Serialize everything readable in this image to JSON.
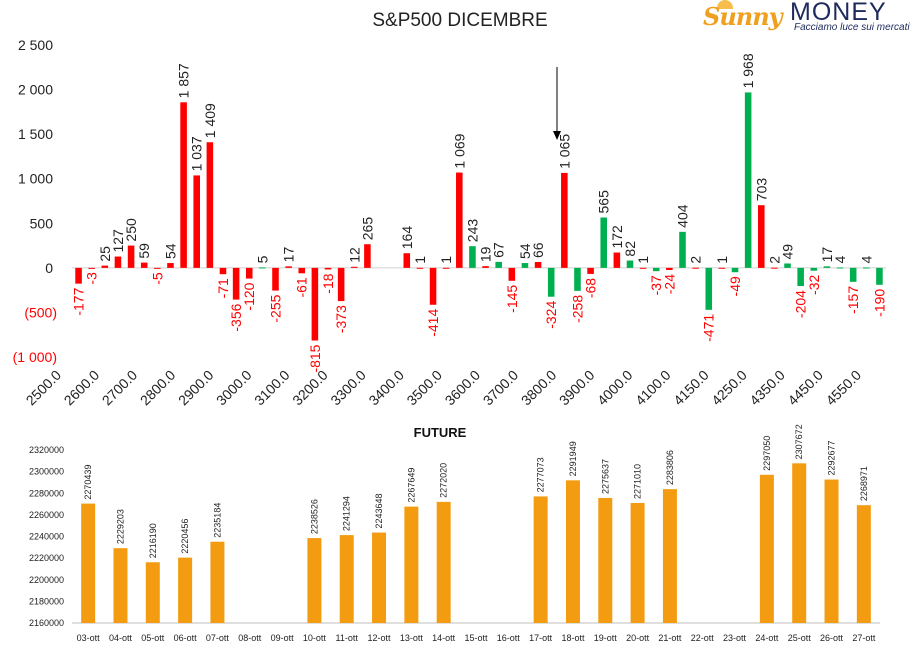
{
  "brand": {
    "name_part1": "Sunny",
    "name_part2": "MONEY",
    "tagline": "Facciamo luce sui mercati"
  },
  "colors": {
    "positive": "#00b050",
    "negative": "#ff0000",
    "bar2": "#f39c12",
    "text": "#222222"
  },
  "chart_data": [
    {
      "type": "bar",
      "title": "S&P500 DICEMBRE",
      "ylim": [
        -1000,
        2500
      ],
      "yticks": [
        2500,
        2000,
        1500,
        1000,
        500,
        0,
        -500,
        -1000
      ],
      "ytick_labels": [
        "2 500",
        "2 000",
        "1 500",
        "1 000",
        "500",
        "0",
        "(500)",
        "(1 000)"
      ],
      "x_tick_labels": [
        "2500.0",
        "2600.0",
        "2700.0",
        "2800.0",
        "2900.0",
        "3000.0",
        "3100.0",
        "3200.0",
        "3300.0",
        "3400.0",
        "3500.0",
        "3600.0",
        "3700.0",
        "3800.0",
        "3900.0",
        "4000.0",
        "4100.0",
        "4150.0",
        "4250.0",
        "4350.0",
        "4450.0",
        "4550.0"
      ],
      "bars": [
        {
          "v": -177,
          "label": "-177",
          "c": "red"
        },
        {
          "v": -3,
          "label": "-3",
          "c": "red"
        },
        {
          "v": 25,
          "label": "25",
          "c": "red"
        },
        {
          "v": 127,
          "label": "127",
          "c": "red"
        },
        {
          "v": 250,
          "label": "250",
          "c": "red"
        },
        {
          "v": 59,
          "label": "59",
          "c": "red"
        },
        {
          "v": -5,
          "label": "-5",
          "c": "red"
        },
        {
          "v": 54,
          "label": "54",
          "c": "red"
        },
        {
          "v": 1857,
          "label": "1 857",
          "c": "red"
        },
        {
          "v": 1037,
          "label": "1 037",
          "c": "red"
        },
        {
          "v": 1409,
          "label": "1 409",
          "c": "red"
        },
        {
          "v": -71,
          "label": "-71",
          "c": "red"
        },
        {
          "v": -356,
          "label": "-356",
          "c": "red"
        },
        {
          "v": -120,
          "label": "-120",
          "c": "red"
        },
        {
          "v": 5,
          "label": "5",
          "c": "green"
        },
        {
          "v": -255,
          "label": "-255",
          "c": "red"
        },
        {
          "v": 17,
          "label": "17",
          "c": "red"
        },
        {
          "v": -61,
          "label": "-61",
          "c": "red"
        },
        {
          "v": -815,
          "label": "-815",
          "c": "red"
        },
        {
          "v": -18,
          "label": "-18",
          "c": "red"
        },
        {
          "v": -373,
          "label": "-373",
          "c": "red"
        },
        {
          "v": 12,
          "label": "12",
          "c": "red"
        },
        {
          "v": 265,
          "label": "265",
          "c": "red"
        },
        {
          "v": null,
          "label": "",
          "c": "red"
        },
        {
          "v": null,
          "label": "",
          "c": "red"
        },
        {
          "v": 164,
          "label": "164",
          "c": "red"
        },
        {
          "v": 1,
          "label": "1",
          "c": "red"
        },
        {
          "v": -414,
          "label": "-414",
          "c": "red"
        },
        {
          "v": 1,
          "label": "1",
          "c": "red"
        },
        {
          "v": 1069,
          "label": "1 069",
          "c": "red"
        },
        {
          "v": 243,
          "label": "243",
          "c": "green"
        },
        {
          "v": 19,
          "label": "19",
          "c": "red"
        },
        {
          "v": 67,
          "label": "67",
          "c": "green"
        },
        {
          "v": -145,
          "label": "-145",
          "c": "red"
        },
        {
          "v": 54,
          "label": "54",
          "c": "green"
        },
        {
          "v": 66,
          "label": "66",
          "c": "red"
        },
        {
          "v": -324,
          "label": "-324",
          "c": "green"
        },
        {
          "v": 1065,
          "label": "1 065",
          "c": "red"
        },
        {
          "v": -258,
          "label": "-258",
          "c": "green"
        },
        {
          "v": -68,
          "label": "-68",
          "c": "red"
        },
        {
          "v": 565,
          "label": "565",
          "c": "green"
        },
        {
          "v": 172,
          "label": "172",
          "c": "red"
        },
        {
          "v": 82,
          "label": "82",
          "c": "green"
        },
        {
          "v": 1,
          "label": "1",
          "c": "red"
        },
        {
          "v": -37,
          "label": "-37",
          "c": "green"
        },
        {
          "v": -24,
          "label": "-24",
          "c": "red"
        },
        {
          "v": 404,
          "label": "404",
          "c": "green"
        },
        {
          "v": 2,
          "label": "2",
          "c": "red"
        },
        {
          "v": -471,
          "label": "-471",
          "c": "green"
        },
        {
          "v": 1,
          "label": "1",
          "c": "red"
        },
        {
          "v": -49,
          "label": "-49",
          "c": "green"
        },
        {
          "v": 1968,
          "label": "1 968",
          "c": "green"
        },
        {
          "v": 703,
          "label": "703",
          "c": "red"
        },
        {
          "v": 2,
          "label": "2",
          "c": "red"
        },
        {
          "v": 49,
          "label": "49",
          "c": "green"
        },
        {
          "v": -204,
          "label": "-204",
          "c": "green"
        },
        {
          "v": -32,
          "label": "-32",
          "c": "green"
        },
        {
          "v": 17,
          "label": "17",
          "c": "green"
        },
        {
          "v": 4,
          "label": "4",
          "c": "green"
        },
        {
          "v": -157,
          "label": "-157",
          "c": "green"
        },
        {
          "v": 4,
          "label": "4",
          "c": "green"
        },
        {
          "v": -190,
          "label": "-190",
          "c": "green"
        }
      ]
    },
    {
      "type": "bar",
      "title": "FUTURE",
      "ylim": [
        2160000,
        2320000
      ],
      "yticks": [
        2320000,
        2300000,
        2280000,
        2260000,
        2240000,
        2220000,
        2200000,
        2180000,
        2160000
      ],
      "categories": [
        "03-ott",
        "04-ott",
        "05-ott",
        "06-ott",
        "07-ott",
        "08-ott",
        "09-ott",
        "10-ott",
        "11-ott",
        "12-ott",
        "13-ott",
        "14-ott",
        "15-ott",
        "16-ott",
        "17-ott",
        "18-ott",
        "19-ott",
        "20-ott",
        "21-ott",
        "22-ott",
        "23-ott",
        "24-ott",
        "25-ott",
        "26-ott",
        "27-ott"
      ],
      "values": [
        2270439,
        2229203,
        2216190,
        2220456,
        2235184,
        null,
        null,
        2238526,
        2241294,
        2243648,
        2267649,
        2272020,
        null,
        null,
        2277073,
        2291949,
        2275637,
        2271010,
        2283806,
        null,
        null,
        2297050,
        2307672,
        2292677,
        2268971
      ]
    }
  ]
}
